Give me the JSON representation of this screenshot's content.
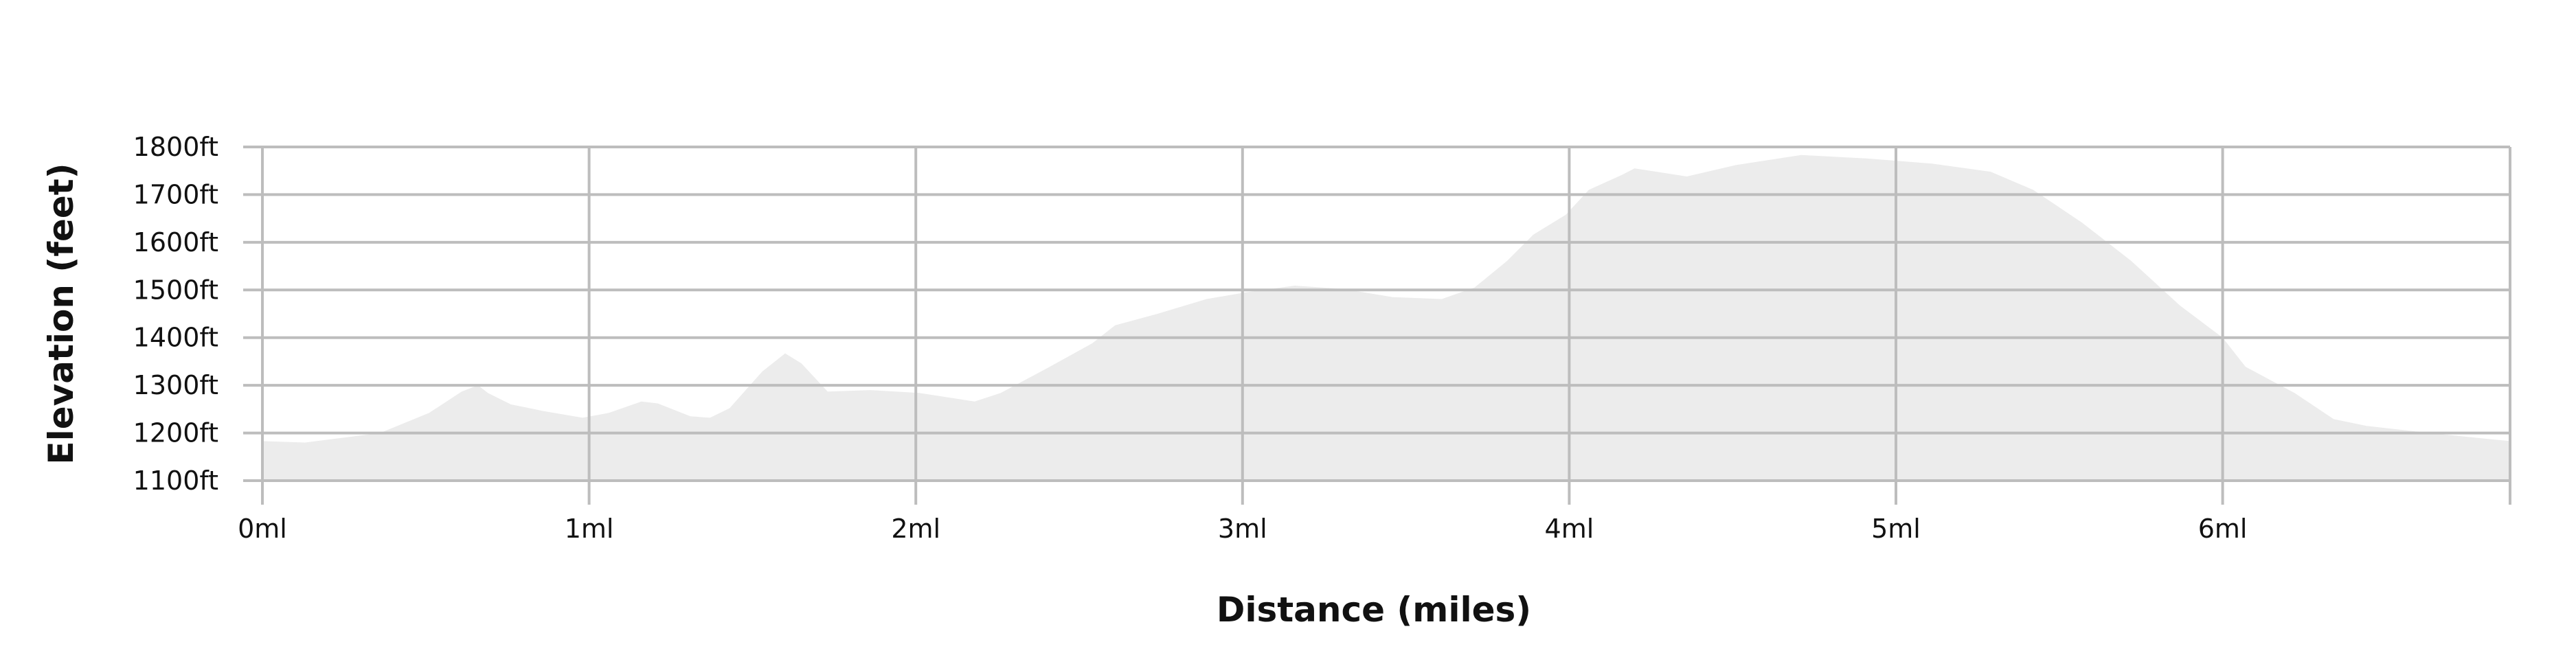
{
  "chart_data": {
    "type": "area",
    "title": "",
    "xlabel": "Distance (miles)",
    "ylabel": "Elevation (feet)",
    "xlim": [
      0,
      6.88
    ],
    "ylim": [
      1100,
      1800
    ],
    "x_ticks": [
      0,
      1,
      2,
      3,
      4,
      5,
      6
    ],
    "x_tick_labels": [
      "0ml",
      "1ml",
      "2ml",
      "3ml",
      "4ml",
      "5ml",
      "6ml"
    ],
    "y_ticks": [
      1100,
      1200,
      1300,
      1400,
      1500,
      1600,
      1700,
      1800
    ],
    "y_tick_labels": [
      "1100ft",
      "1200ft",
      "1300ft",
      "1400ft",
      "1500ft",
      "1600ft",
      "1700ft",
      "1800ft"
    ],
    "grid": true,
    "fill_color": "#ececec",
    "grid_color": "#bdbdbd",
    "series": [
      {
        "x": [
          0,
          0.13,
          0.36,
          0.51,
          0.61,
          0.66,
          0.69,
          0.76,
          0.86,
          0.98,
          1.06,
          1.16,
          1.21,
          1.31,
          1.37,
          1.43,
          1.53,
          1.6,
          1.65,
          1.73,
          1.86,
          2.01,
          2.18,
          2.26,
          2.41,
          2.54,
          2.61,
          2.74,
          2.89,
          3.01,
          3.16,
          3.31,
          3.46,
          3.61,
          3.71,
          3.81,
          3.89,
          3.99,
          4.06,
          4.16,
          4.2,
          4.36,
          4.51,
          4.71,
          4.91,
          5.11,
          5.29,
          5.42,
          5.57,
          5.72,
          5.87,
          6.0,
          6.07,
          6.22,
          6.34,
          6.44,
          6.62,
          6.82,
          6.88
        ],
        "y": [
          1183,
          1180,
          1200,
          1242,
          1287,
          1300,
          1284,
          1260,
          1246,
          1232,
          1242,
          1266,
          1262,
          1235,
          1232,
          1252,
          1329,
          1367,
          1346,
          1287,
          1290,
          1284,
          1266,
          1284,
          1339,
          1388,
          1426,
          1450,
          1481,
          1495,
          1509,
          1502,
          1485,
          1481,
          1505,
          1561,
          1616,
          1658,
          1710,
          1741,
          1755,
          1738,
          1762,
          1783,
          1776,
          1765,
          1748,
          1710,
          1641,
          1561,
          1467,
          1400,
          1339,
          1284,
          1229,
          1215,
          1201,
          1187,
          1183
        ]
      }
    ]
  }
}
